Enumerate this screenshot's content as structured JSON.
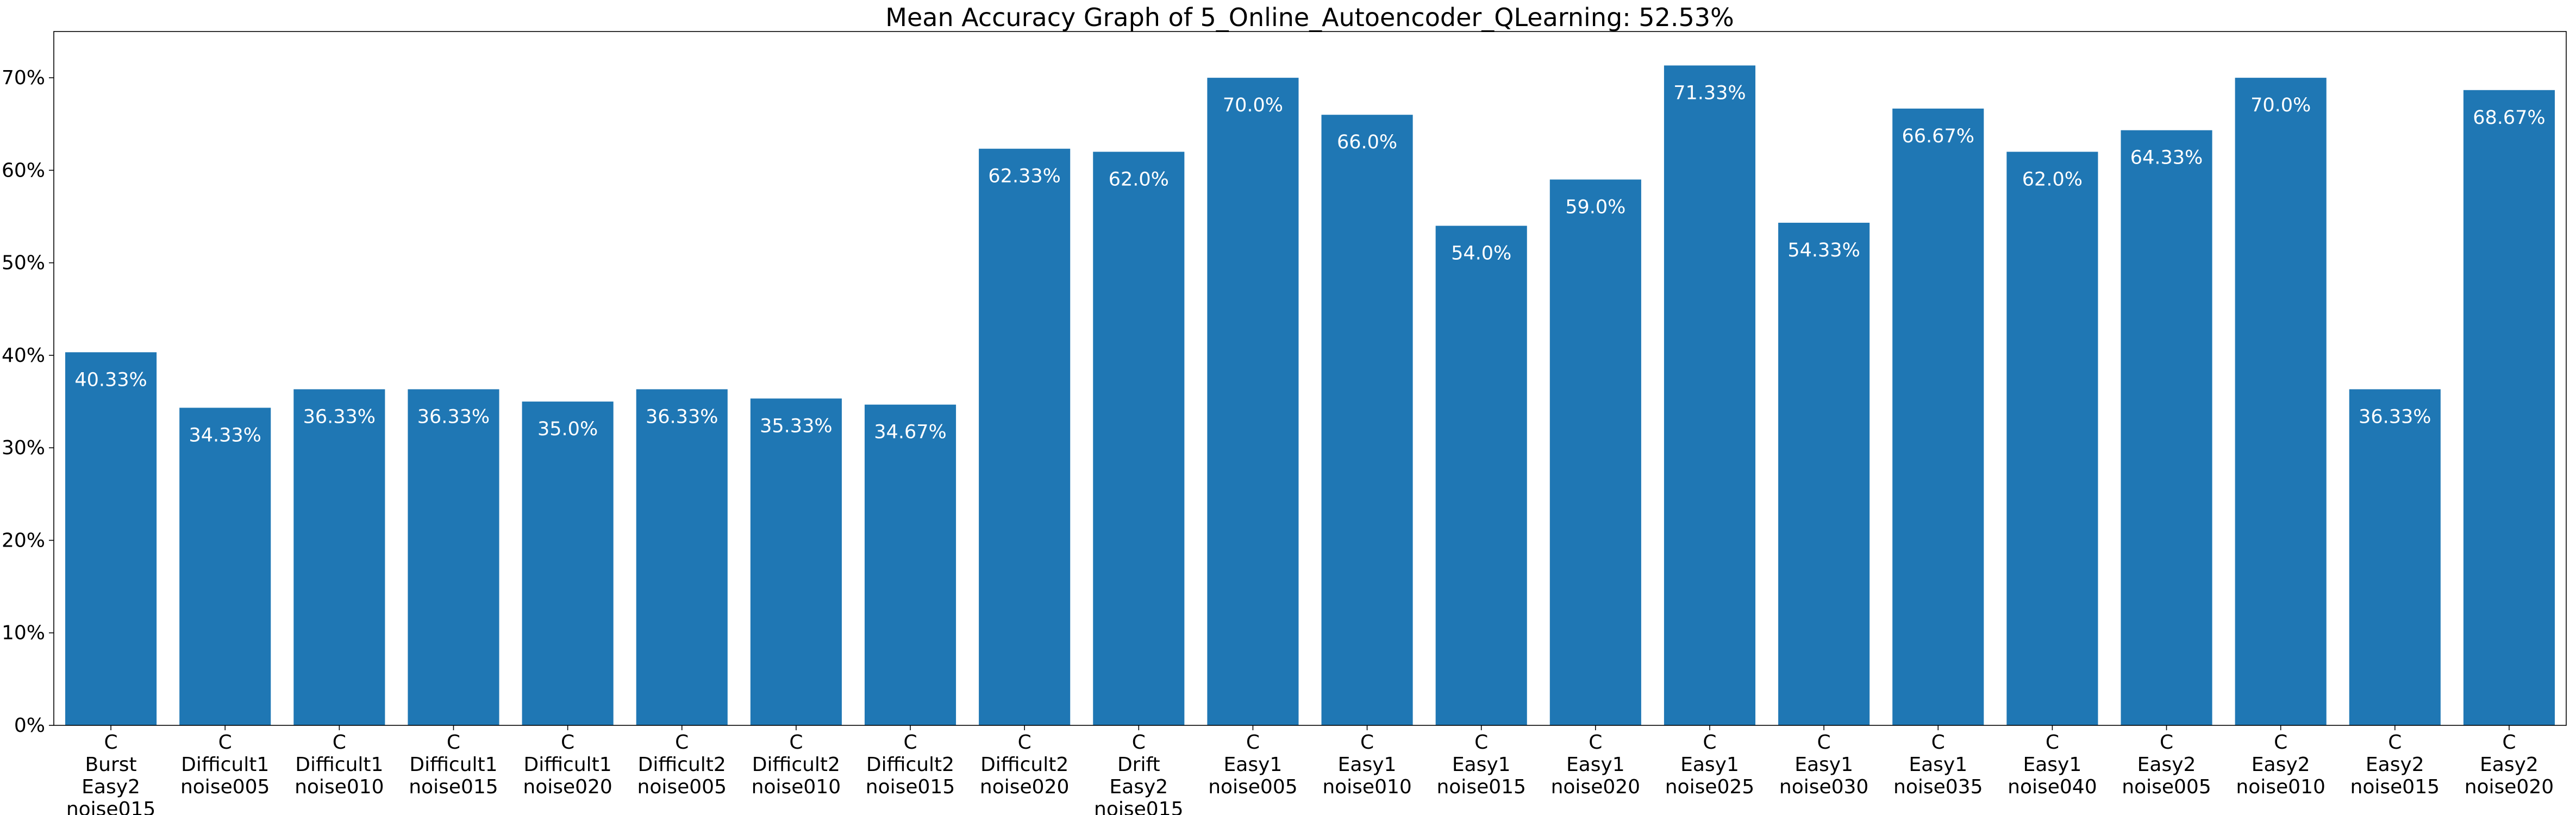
{
  "chart_data": {
    "type": "bar",
    "title": "Mean Accuracy Graph of 5_Online_Autoencoder_QLearning: 52.53%",
    "xlabel": "",
    "ylabel": "",
    "ylim": [
      0,
      75
    ],
    "y_ticks": [
      "0%",
      "10%",
      "20%",
      "30%",
      "40%",
      "50%",
      "60%",
      "70%"
    ],
    "y_tick_values": [
      0,
      10,
      20,
      30,
      40,
      50,
      60,
      70
    ],
    "grid": false,
    "bar_color": "#1f77b4",
    "label_color": "#ffffff",
    "categories": [
      [
        "C",
        "Burst",
        "Easy2",
        "noise015"
      ],
      [
        "C",
        "Difficult1",
        "noise005"
      ],
      [
        "C",
        "Difficult1",
        "noise010"
      ],
      [
        "C",
        "Difficult1",
        "noise015"
      ],
      [
        "C",
        "Difficult1",
        "noise020"
      ],
      [
        "C",
        "Difficult2",
        "noise005"
      ],
      [
        "C",
        "Difficult2",
        "noise010"
      ],
      [
        "C",
        "Difficult2",
        "noise015"
      ],
      [
        "C",
        "Difficult2",
        "noise020"
      ],
      [
        "C",
        "Drift",
        "Easy2",
        "noise015"
      ],
      [
        "C",
        "Easy1",
        "noise005"
      ],
      [
        "C",
        "Easy1",
        "noise010"
      ],
      [
        "C",
        "Easy1",
        "noise015"
      ],
      [
        "C",
        "Easy1",
        "noise020"
      ],
      [
        "C",
        "Easy1",
        "noise025"
      ],
      [
        "C",
        "Easy1",
        "noise030"
      ],
      [
        "C",
        "Easy1",
        "noise035"
      ],
      [
        "C",
        "Easy1",
        "noise040"
      ],
      [
        "C",
        "Easy2",
        "noise005"
      ],
      [
        "C",
        "Easy2",
        "noise010"
      ],
      [
        "C",
        "Easy2",
        "noise015"
      ],
      [
        "C",
        "Easy2",
        "noise020"
      ]
    ],
    "values": [
      40.33,
      34.33,
      36.33,
      36.33,
      35.0,
      36.33,
      35.33,
      34.67,
      62.33,
      62.0,
      70.0,
      66.0,
      54.0,
      59.0,
      71.33,
      54.33,
      66.67,
      62.0,
      64.33,
      70.0,
      36.33,
      68.67
    ],
    "data_labels": [
      "40.33%",
      "34.33%",
      "36.33%",
      "36.33%",
      "35.0%",
      "36.33%",
      "35.33%",
      "34.67%",
      "62.33%",
      "62.0%",
      "70.0%",
      "66.0%",
      "54.0%",
      "59.0%",
      "71.33%",
      "54.33%",
      "66.67%",
      "62.0%",
      "64.33%",
      "70.0%",
      "36.33%",
      "68.67%"
    ]
  }
}
